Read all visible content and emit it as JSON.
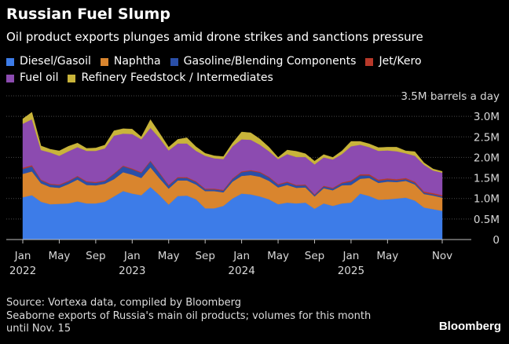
{
  "header": {
    "title": "Russian Fuel Slump",
    "subtitle": "Oil product exports plunges amid drone strikes and sanctions pressure"
  },
  "footer": {
    "source": "Source: Vortexa data, compiled by Bloomberg",
    "note_line1": "Seaborne exports of Russia's main oil products; volumes for this month",
    "note_line2": "until Nov. 15",
    "brand": "Bloomberg"
  },
  "chart_data": {
    "type": "area",
    "stacked": true,
    "title": "Russian Fuel Slump",
    "ylabel": "barrels a day",
    "ylim": [
      0,
      3.5
    ],
    "y_ticks": [
      0,
      0.5,
      1.0,
      1.5,
      2.0,
      2.5,
      3.0,
      3.5
    ],
    "y_tick_labels": [
      "0",
      "0.5M",
      "1.0M",
      "1.5M",
      "2.0M",
      "2.5M",
      "3.0M",
      "3.5M barrels a day"
    ],
    "x_tick_labels": [
      {
        "index": 0,
        "label": "Jan",
        "year": "2022"
      },
      {
        "index": 4,
        "label": "May",
        "year": ""
      },
      {
        "index": 8,
        "label": "Sep",
        "year": ""
      },
      {
        "index": 12,
        "label": "Jan",
        "year": "2023"
      },
      {
        "index": 16,
        "label": "May",
        "year": ""
      },
      {
        "index": 20,
        "label": "Sep",
        "year": ""
      },
      {
        "index": 24,
        "label": "Jan",
        "year": "2024"
      },
      {
        "index": 28,
        "label": "May",
        "year": ""
      },
      {
        "index": 32,
        "label": "Sep",
        "year": ""
      },
      {
        "index": 36,
        "label": "Jan",
        "year": "2025"
      },
      {
        "index": 40,
        "label": "May",
        "year": ""
      },
      {
        "index": 46,
        "label": "Nov",
        "year": ""
      }
    ],
    "months": 47,
    "series": [
      {
        "name": "Diesel/Gasoil",
        "color": "#3d7ce8",
        "values": [
          1.03,
          1.08,
          0.92,
          0.86,
          0.87,
          0.88,
          0.93,
          0.88,
          0.88,
          0.92,
          1.05,
          1.18,
          1.12,
          1.08,
          1.28,
          1.08,
          0.85,
          1.06,
          1.07,
          0.98,
          0.76,
          0.76,
          0.82,
          1.0,
          1.12,
          1.1,
          1.05,
          0.98,
          0.86,
          0.9,
          0.88,
          0.9,
          0.75,
          0.88,
          0.82,
          0.88,
          0.9,
          1.12,
          1.06,
          0.97,
          0.98,
          1.0,
          1.02,
          0.95,
          0.78,
          0.74,
          0.7
        ]
      },
      {
        "name": "Naphtha",
        "color": "#d9852e",
        "values": [
          0.57,
          0.58,
          0.45,
          0.42,
          0.39,
          0.47,
          0.53,
          0.45,
          0.44,
          0.44,
          0.42,
          0.46,
          0.46,
          0.42,
          0.48,
          0.41,
          0.39,
          0.38,
          0.37,
          0.36,
          0.42,
          0.42,
          0.33,
          0.41,
          0.43,
          0.47,
          0.48,
          0.45,
          0.41,
          0.43,
          0.38,
          0.37,
          0.3,
          0.37,
          0.38,
          0.44,
          0.43,
          0.36,
          0.44,
          0.41,
          0.43,
          0.4,
          0.41,
          0.39,
          0.33,
          0.33,
          0.32
        ]
      },
      {
        "name": "Gasoline/Blending Components",
        "color": "#2a4fa8",
        "values": [
          0.12,
          0.12,
          0.07,
          0.06,
          0.06,
          0.06,
          0.07,
          0.07,
          0.06,
          0.06,
          0.12,
          0.14,
          0.13,
          0.12,
          0.14,
          0.12,
          0.07,
          0.06,
          0.06,
          0.06,
          0.04,
          0.04,
          0.04,
          0.06,
          0.09,
          0.1,
          0.1,
          0.08,
          0.06,
          0.06,
          0.05,
          0.05,
          0.03,
          0.04,
          0.04,
          0.05,
          0.08,
          0.08,
          0.06,
          0.05,
          0.05,
          0.04,
          0.04,
          0.04,
          0.03,
          0.03,
          0.03
        ]
      },
      {
        "name": "Jet/Kero",
        "color": "#b8392a",
        "values": [
          0.03,
          0.03,
          0.02,
          0.02,
          0.02,
          0.02,
          0.02,
          0.02,
          0.02,
          0.02,
          0.02,
          0.02,
          0.02,
          0.02,
          0.02,
          0.02,
          0.02,
          0.02,
          0.02,
          0.02,
          0.02,
          0.02,
          0.02,
          0.02,
          0.02,
          0.02,
          0.02,
          0.02,
          0.02,
          0.02,
          0.02,
          0.02,
          0.02,
          0.02,
          0.02,
          0.02,
          0.03,
          0.03,
          0.03,
          0.03,
          0.03,
          0.03,
          0.03,
          0.03,
          0.03,
          0.03,
          0.03
        ]
      },
      {
        "name": "Fuel oil",
        "color": "#8c4bb0",
        "values": [
          1.07,
          1.12,
          0.72,
          0.76,
          0.7,
          0.72,
          0.7,
          0.74,
          0.76,
          0.78,
          0.92,
          0.78,
          0.84,
          0.8,
          0.8,
          0.84,
          0.84,
          0.82,
          0.82,
          0.74,
          0.8,
          0.74,
          0.75,
          0.78,
          0.78,
          0.74,
          0.66,
          0.62,
          0.61,
          0.67,
          0.68,
          0.67,
          0.73,
          0.69,
          0.69,
          0.69,
          0.83,
          0.72,
          0.66,
          0.7,
          0.68,
          0.68,
          0.6,
          0.63,
          0.65,
          0.55,
          0.55
        ]
      },
      {
        "name": "Refinery Feedstock / Intermediates",
        "color": "#c9b43a",
        "values": [
          0.12,
          0.17,
          0.1,
          0.08,
          0.12,
          0.12,
          0.1,
          0.06,
          0.07,
          0.08,
          0.12,
          0.12,
          0.12,
          0.06,
          0.2,
          0.12,
          0.08,
          0.1,
          0.14,
          0.1,
          0.06,
          0.06,
          0.06,
          0.08,
          0.18,
          0.17,
          0.14,
          0.1,
          0.04,
          0.1,
          0.14,
          0.08,
          0.08,
          0.07,
          0.05,
          0.08,
          0.12,
          0.08,
          0.08,
          0.08,
          0.08,
          0.1,
          0.06,
          0.1,
          0.05,
          0.04,
          0.03
        ]
      }
    ]
  }
}
